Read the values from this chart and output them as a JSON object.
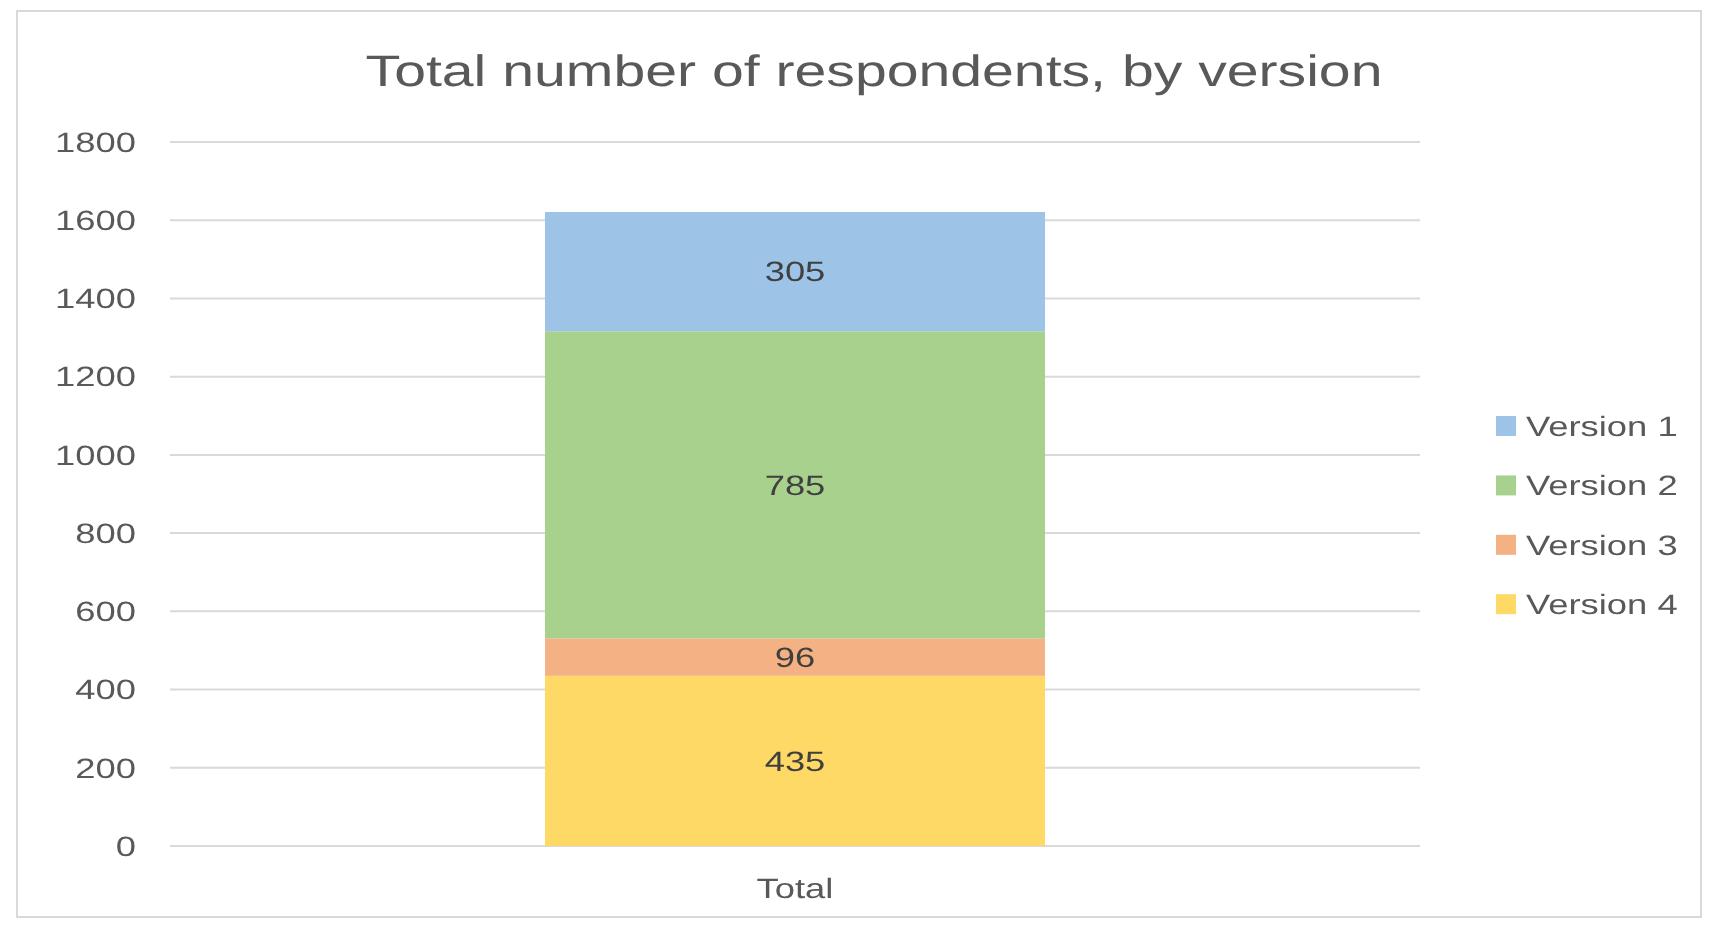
{
  "chart_data": {
    "type": "bar",
    "title": "Total number of respondents, by version",
    "categories": [
      "Total"
    ],
    "series": [
      {
        "name": "Version 4",
        "color": "#ffd966",
        "values": [
          435
        ]
      },
      {
        "name": "Version 3",
        "color": "#f4b183",
        "values": [
          96
        ]
      },
      {
        "name": "Version 2",
        "color": "#a9d18e",
        "values": [
          785
        ]
      },
      {
        "name": "Version 1",
        "color": "#9dc3e6",
        "values": [
          305
        ]
      }
    ],
    "stacked": true,
    "ylim": [
      0,
      1800
    ],
    "yticks": [
      0,
      200,
      400,
      600,
      800,
      1000,
      1200,
      1400,
      1600,
      1800
    ],
    "grid": true,
    "legend": "right",
    "data_labels": true
  }
}
